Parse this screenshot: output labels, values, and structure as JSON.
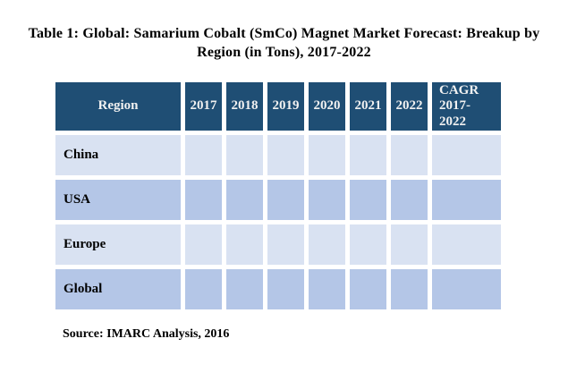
{
  "title": {
    "line1": "Table 1: Global: Samarium Cobalt (SmCo) Magnet Market Forecast: Breakup by",
    "line2": "Region (in Tons), 2017-2022",
    "full": "Table 1: Global: Samarium Cobalt (SmCo) Magnet Market Forecast: Breakup by Region (in Tons), 2017-2022"
  },
  "source_note": "Source: IMARC Analysis, 2016",
  "colors": {
    "header_bg": "#1F4E74",
    "header_text": "#F1F1F1",
    "row_light": "#D9E2F2",
    "row_dark": "#B4C6E7",
    "grid_gap": "#FFFFFF",
    "body_text": "#000000"
  },
  "chart_data": {
    "type": "table",
    "columns": [
      "Region",
      "2017",
      "2018",
      "2019",
      "2020",
      "2021",
      "2022",
      "CAGR 2017-2022"
    ],
    "rows": [
      {
        "region": "China",
        "values": [
          "",
          "",
          "",
          "",
          "",
          "",
          ""
        ]
      },
      {
        "region": "USA",
        "values": [
          "",
          "",
          "",
          "",
          "",
          "",
          ""
        ]
      },
      {
        "region": "Europe",
        "values": [
          "",
          "",
          "",
          "",
          "",
          "",
          ""
        ]
      },
      {
        "region": "Global",
        "values": [
          "",
          "",
          "",
          "",
          "",
          "",
          ""
        ]
      }
    ],
    "note_on_values": "All forecast data cells are blank (redacted) in the image"
  }
}
